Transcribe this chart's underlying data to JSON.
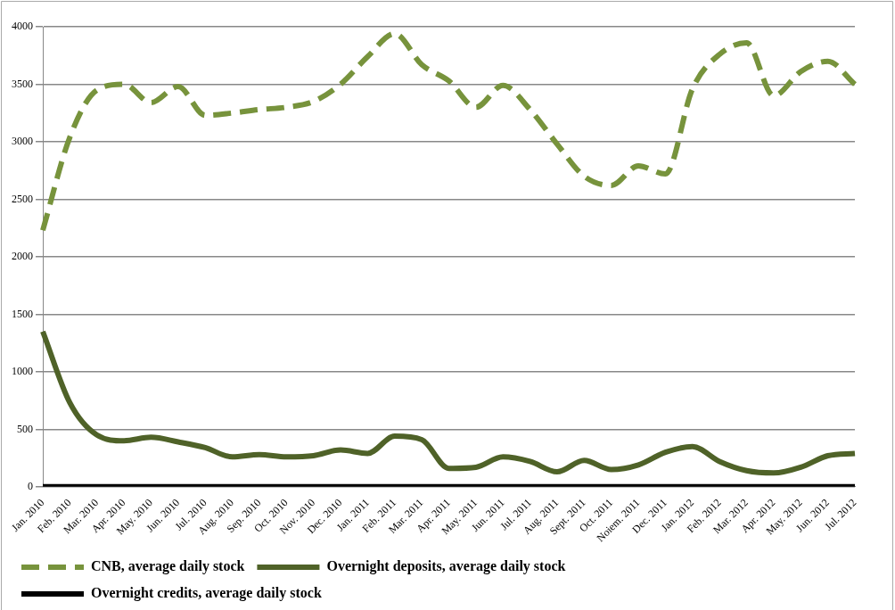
{
  "chart_data": {
    "type": "line",
    "categories": [
      "Jan. 2010",
      "Feb. 2010",
      "Mar. 2010",
      "Apr. 2010",
      "May. 2010",
      "Jun. 2010",
      "Jul. 2010",
      "Aug. 2010",
      "Sep. 2010",
      "Oct. 2010",
      "Nov. 2010",
      "Dec. 2010",
      "Jan. 2011",
      "Feb. 2011",
      "Mar. 2011",
      "Apr. 2011",
      "May. 2011",
      "Jun. 2011",
      "Jul. 2011",
      "Aug. 2011",
      "Sept. 2011",
      "Oct. 2011",
      "Noiem. 2011",
      "Dec. 2011",
      "Jan. 2012",
      "Feb. 2012",
      "Mar. 2012",
      "Apr. 2012",
      "May. 2012",
      "Jun. 2012",
      "Jul. 2012"
    ],
    "series": [
      {
        "name": "CNB, average daily stock",
        "color": "#77933c",
        "line_style": "dashed",
        "values": [
          2230,
          3040,
          3450,
          3500,
          3340,
          3480,
          3230,
          3250,
          3280,
          3300,
          3350,
          3500,
          3740,
          3940,
          3670,
          3530,
          3300,
          3490,
          3280,
          2980,
          2700,
          2620,
          2790,
          2720,
          3460,
          3760,
          3860,
          3400,
          3610,
          3700,
          3500
        ]
      },
      {
        "name": "Overnight deposits, average daily stock",
        "color": "#4f6228",
        "line_style": "solid",
        "values": [
          1350,
          730,
          450,
          400,
          430,
          390,
          340,
          260,
          280,
          260,
          270,
          320,
          290,
          440,
          410,
          160,
          170,
          260,
          220,
          130,
          230,
          150,
          190,
          300,
          350,
          220,
          140,
          120,
          170,
          270,
          290
        ]
      },
      {
        "name": "Overnight credits, average daily stock",
        "color": "#000000",
        "line_style": "solid",
        "values": [
          0,
          0,
          0,
          0,
          0,
          0,
          0,
          0,
          0,
          0,
          0,
          0,
          0,
          0,
          0,
          0,
          0,
          0,
          0,
          0,
          0,
          0,
          0,
          0,
          0,
          0,
          0,
          0,
          0,
          0,
          0
        ]
      }
    ],
    "ylim": [
      0,
      4000
    ],
    "yticks": [
      0,
      500,
      1000,
      1500,
      2000,
      2500,
      3000,
      3500,
      4000
    ],
    "grid": "y",
    "legend": "bottom",
    "marker": "none"
  }
}
